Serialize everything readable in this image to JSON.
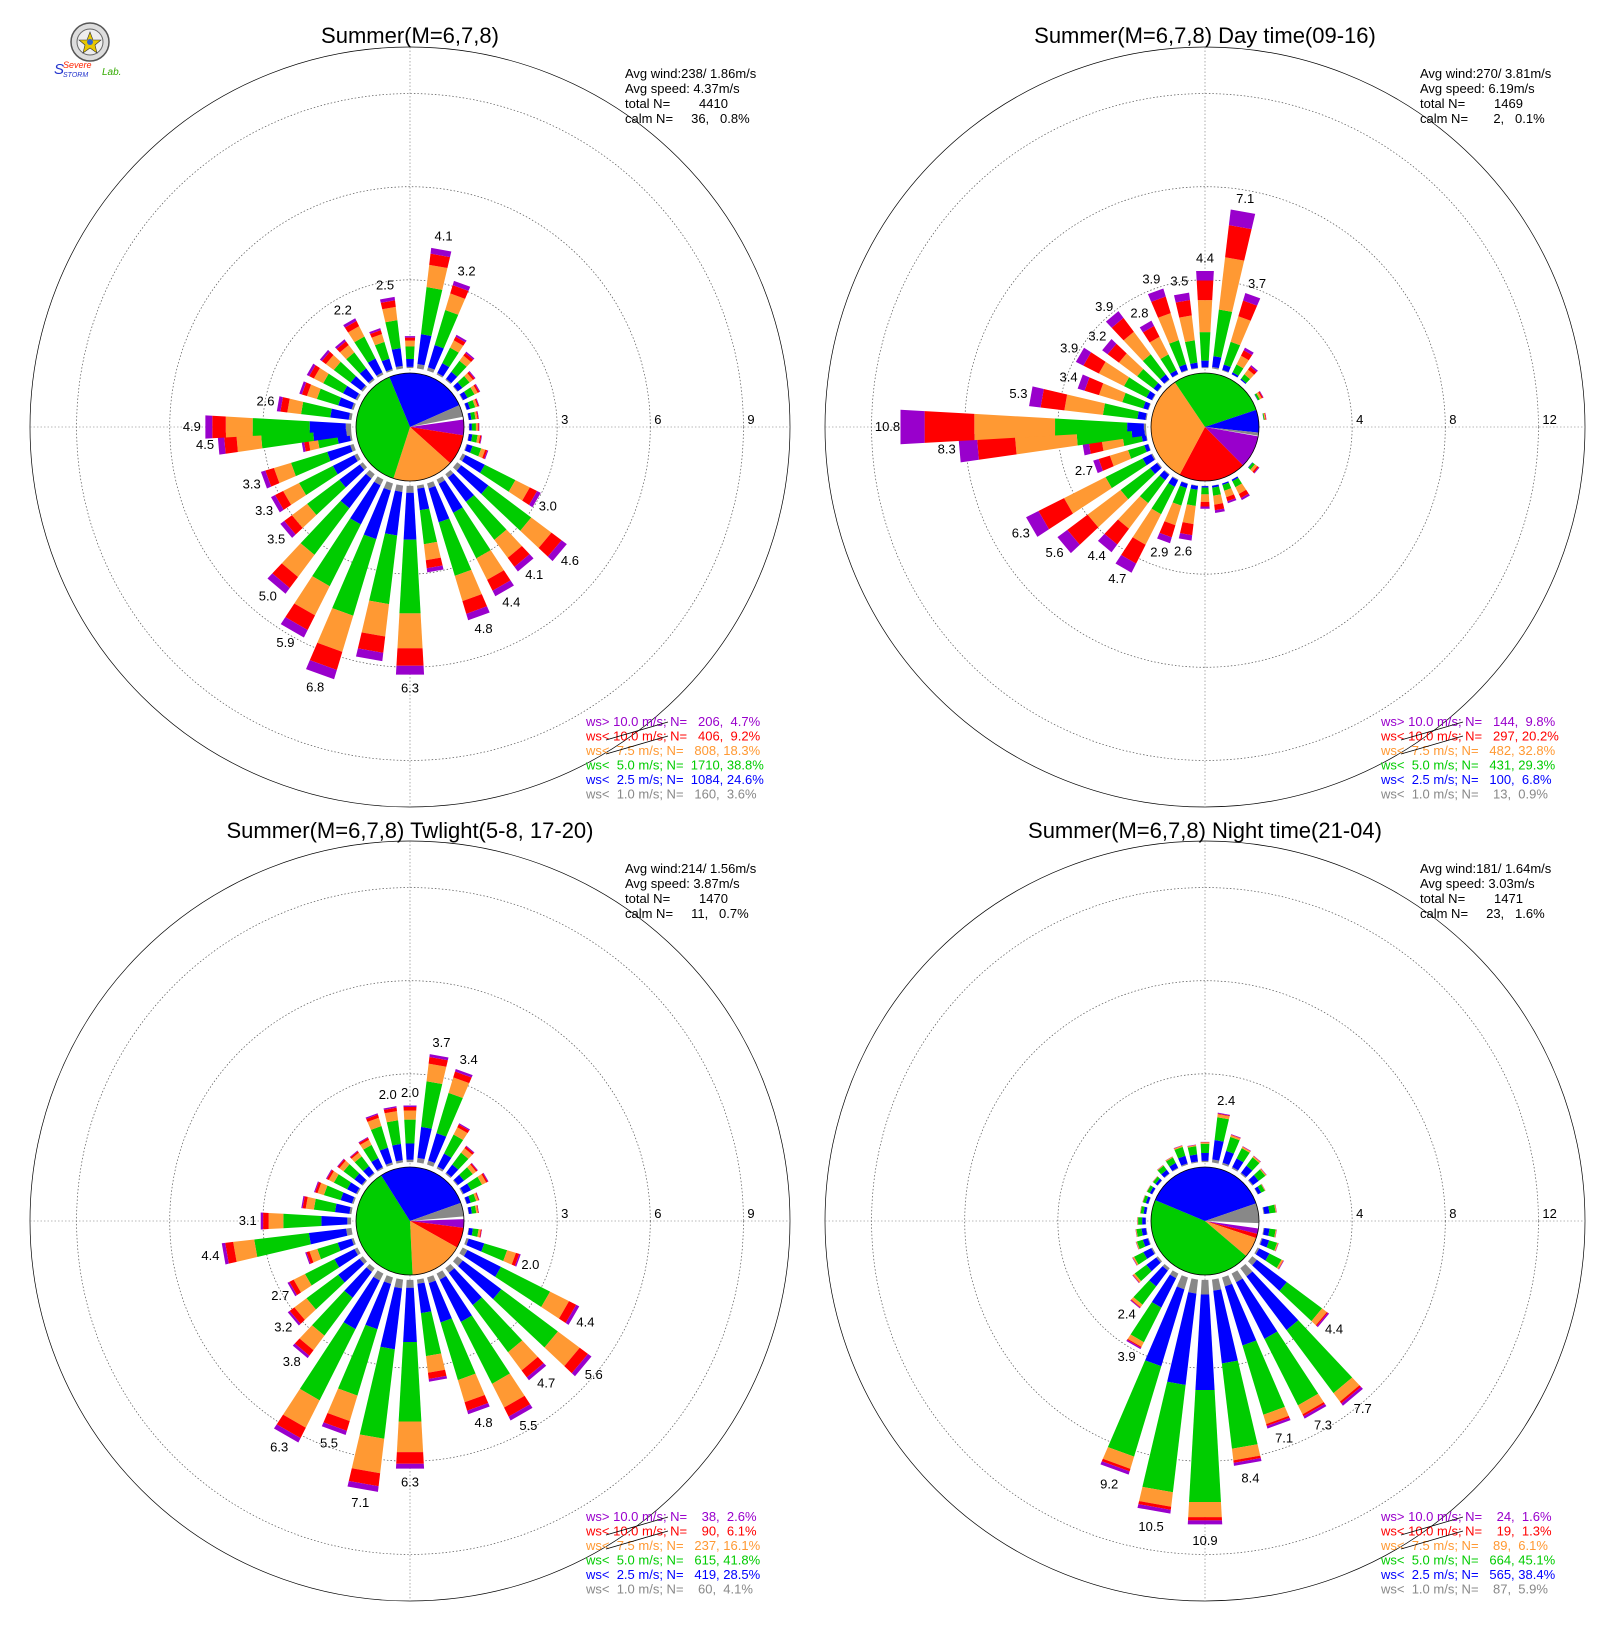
{
  "logo": {
    "text_top": "Severe",
    "text_bottom": "STORM",
    "text_lab": "Lab."
  },
  "chart_data": [
    {
      "type": "windrose",
      "title": "Summer(M=6,7,8)",
      "rings": [
        3,
        6,
        9
      ],
      "rmax": 10.5,
      "stats": [
        "Avg wind:238/ 1.86m/s",
        "Avg speed: 4.37m/s",
        "total N=        4410",
        "calm N=     36,   0.8%"
      ],
      "legend": [
        {
          "label": "ws> 10.0 m/s; N=   206,  4.7%",
          "color": "#9900cc"
        },
        {
          "label": "ws< 10.0 m/s; N=   406,  9.2%",
          "color": "#ff0000"
        },
        {
          "label": "ws<  7.5 m/s; N=   808, 18.3%",
          "color": "#ff9933"
        },
        {
          "label": "ws<  5.0 m/s; N=  1710, 38.8%",
          "color": "#00cc00"
        },
        {
          "label": "ws<  2.5 m/s; N=  1084, 24.6%",
          "color": "#0000ff"
        },
        {
          "label": "ws<  1.0 m/s; N=   160,  3.6%",
          "color": "#888888"
        }
      ],
      "pie_fractions": [
        0.047,
        0.092,
        0.183,
        0.388,
        0.246,
        0.036
      ],
      "pie_start_deg": 82,
      "bars": [
        {
          "dir": 0,
          "total": 1.2,
          "label": ""
        },
        {
          "dir": 10,
          "total": 4.1,
          "label": "4.1"
        },
        {
          "dir": 20,
          "total": 3.2,
          "label": "3.2"
        },
        {
          "dir": 30,
          "total": 1.6,
          "label": ""
        },
        {
          "dir": 40,
          "total": 1.3,
          "label": ""
        },
        {
          "dir": 50,
          "total": 0.9,
          "label": ""
        },
        {
          "dir": 60,
          "total": 0.8,
          "label": ""
        },
        {
          "dir": 70,
          "total": 0.6,
          "label": ""
        },
        {
          "dir": 80,
          "total": 0.5,
          "label": ""
        },
        {
          "dir": 90,
          "total": 0.5,
          "label": ""
        },
        {
          "dir": 100,
          "total": 0.6,
          "label": ""
        },
        {
          "dir": 110,
          "total": 0.9,
          "label": ""
        },
        {
          "dir": 120,
          "total": 3.0,
          "label": "3.0"
        },
        {
          "dir": 130,
          "total": 4.6,
          "label": "4.6"
        },
        {
          "dir": 140,
          "total": 4.1,
          "label": "4.1"
        },
        {
          "dir": 150,
          "total": 4.4,
          "label": "4.4"
        },
        {
          "dir": 160,
          "total": 4.8,
          "label": "4.8"
        },
        {
          "dir": 170,
          "total": 3.0,
          "label": ""
        },
        {
          "dir": 180,
          "total": 6.3,
          "label": "6.3"
        },
        {
          "dir": 190,
          "total": 5.9,
          "label": ""
        },
        {
          "dir": 200,
          "total": 6.8,
          "label": "6.8"
        },
        {
          "dir": 210,
          "total": 5.9,
          "label": "5.9"
        },
        {
          "dir": 220,
          "total": 5.0,
          "label": "5.0"
        },
        {
          "dir": 230,
          "total": 3.5,
          "label": "3.5"
        },
        {
          "dir": 240,
          "total": 3.3,
          "label": "3.3"
        },
        {
          "dir": 250,
          "total": 3.3,
          "label": "3.3"
        },
        {
          "dir": 260,
          "total": 1.8,
          "label": ""
        },
        {
          "dir": 265,
          "total": 4.5,
          "label": "4.5"
        },
        {
          "dir": 270,
          "total": 4.9,
          "label": "4.9"
        },
        {
          "dir": 280,
          "total": 2.6,
          "label": "2.6"
        },
        {
          "dir": 290,
          "total": 2.0,
          "label": ""
        },
        {
          "dir": 300,
          "total": 2.0,
          "label": ""
        },
        {
          "dir": 310,
          "total": 1.9,
          "label": ""
        },
        {
          "dir": 320,
          "total": 1.8,
          "label": ""
        },
        {
          "dir": 330,
          "total": 2.2,
          "label": "2.2"
        },
        {
          "dir": 340,
          "total": 1.6,
          "label": ""
        },
        {
          "dir": 350,
          "total": 2.5,
          "label": "2.5"
        }
      ]
    },
    {
      "type": "windrose",
      "title": "Summer(M=6,7,8) Day time(09-16)",
      "rings": [
        4,
        8,
        12
      ],
      "rmax": 14,
      "stats": [
        "Avg wind:270/ 3.81m/s",
        "Avg speed: 6.19m/s",
        "total N=        1469",
        "calm N=       2,   0.1%"
      ],
      "legend": [
        {
          "label": "ws> 10.0 m/s; N=   144,  9.8%",
          "color": "#9900cc"
        },
        {
          "label": "ws< 10.0 m/s; N=   297, 20.2%",
          "color": "#ff0000"
        },
        {
          "label": "ws<  7.5 m/s; N=   482, 32.8%",
          "color": "#ff9933"
        },
        {
          "label": "ws<  5.0 m/s; N=   431, 29.3%",
          "color": "#00cc00"
        },
        {
          "label": "ws<  2.5 m/s; N=   100,  6.8%",
          "color": "#0000ff"
        },
        {
          "label": "ws<  1.0 m/s; N=    13,  0.9%",
          "color": "#888888"
        }
      ],
      "pie_fractions": [
        0.098,
        0.202,
        0.328,
        0.293,
        0.068,
        0.009
      ],
      "pie_start_deg": 100,
      "bars": [
        {
          "dir": 0,
          "total": 4.4,
          "label": "4.4"
        },
        {
          "dir": 10,
          "total": 7.1,
          "label": "7.1"
        },
        {
          "dir": 20,
          "total": 3.7,
          "label": "3.7"
        },
        {
          "dir": 30,
          "total": 1.5,
          "label": ""
        },
        {
          "dir": 40,
          "total": 1.0,
          "label": ""
        },
        {
          "dir": 60,
          "total": 0.5,
          "label": ""
        },
        {
          "dir": 80,
          "total": 0.3,
          "label": ""
        },
        {
          "dir": 130,
          "total": 0.6,
          "label": ""
        },
        {
          "dir": 150,
          "total": 1.2,
          "label": ""
        },
        {
          "dir": 160,
          "total": 1.1,
          "label": ""
        },
        {
          "dir": 170,
          "total": 1.4,
          "label": ""
        },
        {
          "dir": 180,
          "total": 1.2,
          "label": ""
        },
        {
          "dir": 190,
          "total": 2.6,
          "label": "2.6"
        },
        {
          "dir": 200,
          "total": 2.9,
          "label": "2.9"
        },
        {
          "dir": 210,
          "total": 4.7,
          "label": "4.7"
        },
        {
          "dir": 220,
          "total": 4.4,
          "label": "4.4"
        },
        {
          "dir": 230,
          "total": 5.6,
          "label": "5.6"
        },
        {
          "dir": 240,
          "total": 6.3,
          "label": "6.3"
        },
        {
          "dir": 250,
          "total": 2.7,
          "label": "2.7"
        },
        {
          "dir": 260,
          "total": 3.0,
          "label": ""
        },
        {
          "dir": 265,
          "total": 8.3,
          "label": "8.3"
        },
        {
          "dir": 270,
          "total": 10.8,
          "label": "10.8"
        },
        {
          "dir": 280,
          "total": 5.3,
          "label": "5.3"
        },
        {
          "dir": 290,
          "total": 3.4,
          "label": "3.4"
        },
        {
          "dir": 300,
          "total": 3.9,
          "label": "3.9"
        },
        {
          "dir": 310,
          "total": 3.2,
          "label": "3.2"
        },
        {
          "dir": 320,
          "total": 3.9,
          "label": "3.9"
        },
        {
          "dir": 330,
          "total": 2.8,
          "label": "2.8"
        },
        {
          "dir": 340,
          "total": 3.9,
          "label": "3.9"
        },
        {
          "dir": 350,
          "total": 3.5,
          "label": "3.5"
        }
      ]
    },
    {
      "type": "windrose",
      "title": "Summer(M=6,7,8) Twlight(5-8, 17-20)",
      "rings": [
        3,
        6,
        9
      ],
      "rmax": 10.5,
      "stats": [
        "Avg wind:214/ 1.56m/s",
        "Avg speed: 3.87m/s",
        "total N=        1470",
        "calm N=     11,   0.7%"
      ],
      "legend": [
        {
          "label": "ws> 10.0 m/s; N=    38,  2.6%",
          "color": "#9900cc"
        },
        {
          "label": "ws< 10.0 m/s; N=    90,  6.1%",
          "color": "#ff0000"
        },
        {
          "label": "ws<  7.5 m/s; N=   237, 16.1%",
          "color": "#ff9933"
        },
        {
          "label": "ws<  5.0 m/s; N=   615, 41.8%",
          "color": "#00cc00"
        },
        {
          "label": "ws<  2.5 m/s; N=   419, 28.5%",
          "color": "#0000ff"
        },
        {
          "label": "ws<  1.0 m/s; N=    60,  4.1%",
          "color": "#888888"
        }
      ],
      "pie_fractions": [
        0.026,
        0.061,
        0.161,
        0.418,
        0.285,
        0.041
      ],
      "pie_start_deg": 88,
      "bars": [
        {
          "dir": 0,
          "total": 2.0,
          "label": "2.0"
        },
        {
          "dir": 10,
          "total": 3.7,
          "label": "3.7"
        },
        {
          "dir": 20,
          "total": 3.4,
          "label": "3.4"
        },
        {
          "dir": 30,
          "total": 1.8,
          "label": ""
        },
        {
          "dir": 40,
          "total": 1.3,
          "label": ""
        },
        {
          "dir": 50,
          "total": 1.0,
          "label": ""
        },
        {
          "dir": 60,
          "total": 1.1,
          "label": ""
        },
        {
          "dir": 70,
          "total": 0.6,
          "label": ""
        },
        {
          "dir": 80,
          "total": 0.5,
          "label": ""
        },
        {
          "dir": 100,
          "total": 0.6,
          "label": ""
        },
        {
          "dir": 110,
          "total": 2.0,
          "label": "2.0"
        },
        {
          "dir": 120,
          "total": 4.4,
          "label": "4.4"
        },
        {
          "dir": 130,
          "total": 5.6,
          "label": "5.6"
        },
        {
          "dir": 140,
          "total": 4.7,
          "label": "4.7"
        },
        {
          "dir": 150,
          "total": 5.5,
          "label": "5.5"
        },
        {
          "dir": 160,
          "total": 4.8,
          "label": "4.8"
        },
        {
          "dir": 170,
          "total": 3.5,
          "label": ""
        },
        {
          "dir": 180,
          "total": 6.3,
          "label": "6.3"
        },
        {
          "dir": 190,
          "total": 7.1,
          "label": "7.1"
        },
        {
          "dir": 200,
          "total": 5.5,
          "label": "5.5"
        },
        {
          "dir": 210,
          "total": 6.3,
          "label": "6.3"
        },
        {
          "dir": 220,
          "total": 3.8,
          "label": "3.8"
        },
        {
          "dir": 230,
          "total": 3.2,
          "label": "3.2"
        },
        {
          "dir": 240,
          "total": 2.7,
          "label": "2.7"
        },
        {
          "dir": 250,
          "total": 1.8,
          "label": ""
        },
        {
          "dir": 260,
          "total": 4.4,
          "label": "4.4"
        },
        {
          "dir": 270,
          "total": 3.1,
          "label": "3.1"
        },
        {
          "dir": 280,
          "total": 1.8,
          "label": ""
        },
        {
          "dir": 290,
          "total": 1.5,
          "label": ""
        },
        {
          "dir": 300,
          "total": 1.3,
          "label": ""
        },
        {
          "dir": 310,
          "total": 1.2,
          "label": ""
        },
        {
          "dir": 320,
          "total": 1.1,
          "label": ""
        },
        {
          "dir": 330,
          "total": 1.3,
          "label": ""
        },
        {
          "dir": 340,
          "total": 1.9,
          "label": ""
        },
        {
          "dir": 350,
          "total": 2.0,
          "label": "2.0"
        }
      ]
    },
    {
      "type": "windrose",
      "title": "Summer(M=6,7,8) Night time(21-04)",
      "rings": [
        4,
        8,
        12
      ],
      "rmax": 14,
      "stats": [
        "Avg wind:181/ 1.64m/s",
        "Avg speed: 3.03m/s",
        "total N=        1471",
        "calm N=     23,   1.6%"
      ],
      "legend": [
        {
          "label": "ws> 10.0 m/s; N=    24,  1.6%",
          "color": "#9900cc"
        },
        {
          "label": "ws< 10.0 m/s; N=    19,  1.3%",
          "color": "#ff0000"
        },
        {
          "label": "ws<  7.5 m/s; N=    89,  6.1%",
          "color": "#ff9933"
        },
        {
          "label": "ws<  5.0 m/s; N=   664, 45.1%",
          "color": "#00cc00"
        },
        {
          "label": "ws<  2.5 m/s; N=   565, 38.4%",
          "color": "#0000ff"
        },
        {
          "label": "ws<  1.0 m/s; N=    87,  5.9%",
          "color": "#888888"
        }
      ],
      "pie_fractions": [
        0.016,
        0.013,
        0.061,
        0.451,
        0.384,
        0.059
      ],
      "pie_start_deg": 98,
      "bars": [
        {
          "dir": 0,
          "total": 1.1,
          "label": ""
        },
        {
          "dir": 10,
          "total": 2.4,
          "label": "2.4"
        },
        {
          "dir": 20,
          "total": 1.6,
          "label": ""
        },
        {
          "dir": 30,
          "total": 1.3,
          "label": ""
        },
        {
          "dir": 40,
          "total": 1.2,
          "label": ""
        },
        {
          "dir": 50,
          "total": 1.0,
          "label": ""
        },
        {
          "dir": 60,
          "total": 0.6,
          "label": ""
        },
        {
          "dir": 80,
          "total": 0.8,
          "label": ""
        },
        {
          "dir": 100,
          "total": 0.8,
          "label": ""
        },
        {
          "dir": 110,
          "total": 1.0,
          "label": ""
        },
        {
          "dir": 120,
          "total": 1.5,
          "label": ""
        },
        {
          "dir": 130,
          "total": 4.4,
          "label": "4.4"
        },
        {
          "dir": 140,
          "total": 7.7,
          "label": "7.7"
        },
        {
          "dir": 150,
          "total": 7.3,
          "label": "7.3"
        },
        {
          "dir": 160,
          "total": 7.1,
          "label": "7.1"
        },
        {
          "dir": 170,
          "total": 8.4,
          "label": "8.4"
        },
        {
          "dir": 180,
          "total": 10.9,
          "label": "10.9"
        },
        {
          "dir": 190,
          "total": 10.5,
          "label": "10.5"
        },
        {
          "dir": 200,
          "total": 9.2,
          "label": "9.2"
        },
        {
          "dir": 210,
          "total": 3.9,
          "label": "3.9"
        },
        {
          "dir": 220,
          "total": 2.4,
          "label": "2.4"
        },
        {
          "dir": 230,
          "total": 1.6,
          "label": ""
        },
        {
          "dir": 240,
          "total": 1.2,
          "label": ""
        },
        {
          "dir": 250,
          "total": 0.8,
          "label": ""
        },
        {
          "dir": 260,
          "total": 0.7,
          "label": ""
        },
        {
          "dir": 270,
          "total": 0.6,
          "label": ""
        },
        {
          "dir": 280,
          "total": 0.5,
          "label": ""
        },
        {
          "dir": 290,
          "total": 0.5,
          "label": ""
        },
        {
          "dir": 300,
          "total": 0.5,
          "label": ""
        },
        {
          "dir": 310,
          "total": 0.5,
          "label": ""
        },
        {
          "dir": 320,
          "total": 0.7,
          "label": ""
        },
        {
          "dir": 330,
          "total": 0.8,
          "label": ""
        },
        {
          "dir": 340,
          "total": 1.1,
          "label": ""
        },
        {
          "dir": 350,
          "total": 1.0,
          "label": ""
        }
      ]
    }
  ]
}
